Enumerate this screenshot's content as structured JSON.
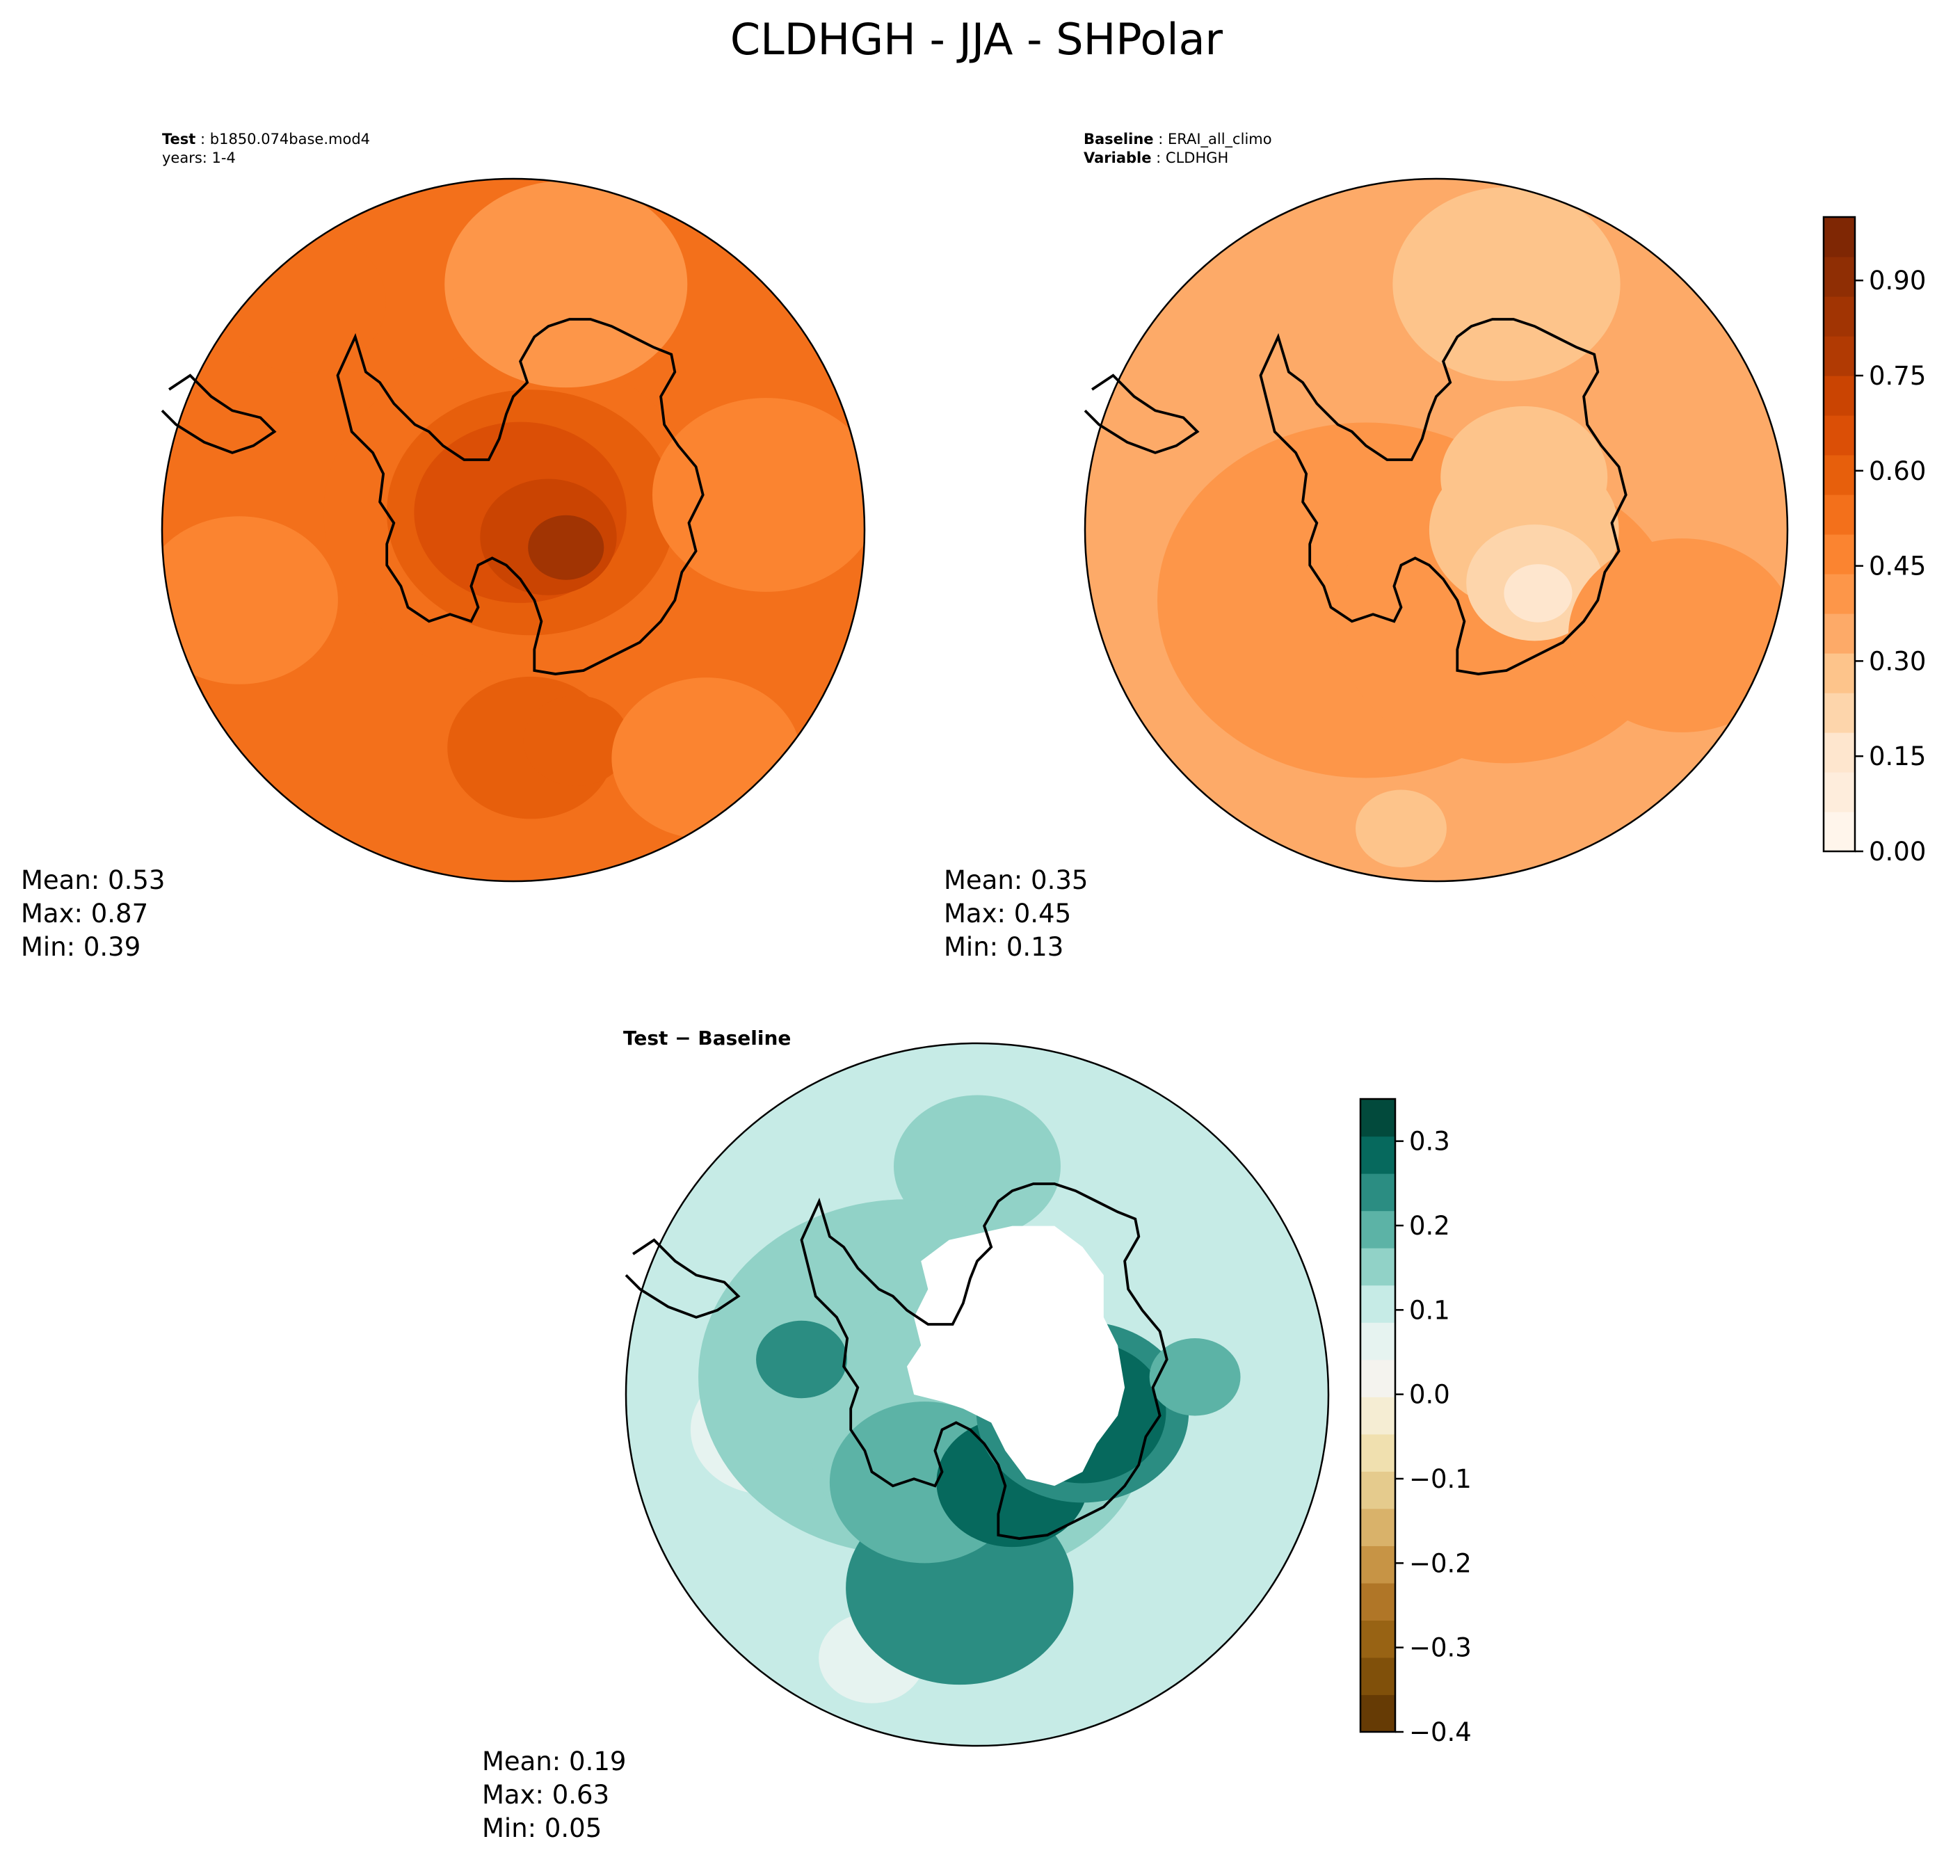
{
  "figure": {
    "title": "CLDHGH - JJA - SHPolar"
  },
  "chart_data": [
    {
      "type": "heatmap",
      "panel": "test",
      "projection": "south polar stereographic",
      "label_bold": "Test",
      "label_value": "b1850.074base.mod4",
      "label_line2": "years: 1-4",
      "stats": {
        "mean_label": "Mean:  0.53",
        "max_label": "Max:  0.87",
        "min_label": "Min:  0.39"
      },
      "levels": [
        0.35,
        0.4,
        0.45,
        0.5,
        0.55,
        0.6,
        0.65,
        0.7,
        0.75,
        0.8,
        0.85
      ],
      "background_value": 0.52,
      "blobs": [
        {
          "cx": 0.0,
          "cy": -0.05,
          "r": 0.5,
          "v": 0.55
        },
        {
          "cx": 0.05,
          "cy": -0.05,
          "r": 0.38,
          "v": 0.6
        },
        {
          "cx": 0.02,
          "cy": -0.05,
          "r": 0.28,
          "v": 0.66
        },
        {
          "cx": 0.1,
          "cy": 0.02,
          "r": 0.18,
          "v": 0.74
        },
        {
          "cx": 0.15,
          "cy": 0.05,
          "r": 0.1,
          "v": 0.82
        },
        {
          "cx": 0.05,
          "cy": 0.62,
          "r": 0.22,
          "v": 0.58
        },
        {
          "cx": 0.18,
          "cy": 0.6,
          "r": 0.14,
          "v": 0.62
        },
        {
          "cx": 0.15,
          "cy": -0.7,
          "r": 0.32,
          "v": 0.42
        },
        {
          "cx": 0.72,
          "cy": -0.1,
          "r": 0.3,
          "v": 0.46
        },
        {
          "cx": -0.78,
          "cy": 0.2,
          "r": 0.26,
          "v": 0.47
        },
        {
          "cx": 0.55,
          "cy": 0.65,
          "r": 0.25,
          "v": 0.47
        },
        {
          "cx": -0.6,
          "cy": -0.65,
          "r": 0.22,
          "v": 0.55
        }
      ]
    },
    {
      "type": "heatmap",
      "panel": "baseline",
      "projection": "south polar stereographic",
      "label_bold": "Baseline",
      "label_value": "ERAI_all_climo",
      "label2_bold": "Variable",
      "label2_value": "CLDHGH",
      "stats": {
        "mean_label": "Mean:  0.35",
        "max_label": "Max:  0.45",
        "min_label": "Min:  0.13"
      },
      "levels": [
        0.15,
        0.2,
        0.25,
        0.3,
        0.35,
        0.4,
        0.45
      ],
      "background_value": 0.36,
      "blobs": [
        {
          "cx": -0.2,
          "cy": 0.2,
          "r": 0.55,
          "v": 0.42
        },
        {
          "cx": 0.2,
          "cy": 0.25,
          "r": 0.45,
          "v": 0.4
        },
        {
          "cx": 0.2,
          "cy": -0.7,
          "r": 0.3,
          "v": 0.3
        },
        {
          "cx": 0.25,
          "cy": 0.0,
          "r": 0.25,
          "v": 0.25
        },
        {
          "cx": 0.25,
          "cy": -0.15,
          "r": 0.22,
          "v": 0.28
        },
        {
          "cx": 0.28,
          "cy": 0.15,
          "r": 0.18,
          "v": 0.2
        },
        {
          "cx": 0.29,
          "cy": 0.18,
          "r": 0.09,
          "v": 0.14
        },
        {
          "cx": -0.1,
          "cy": 0.85,
          "r": 0.12,
          "v": 0.3
        },
        {
          "cx": 0.7,
          "cy": 0.3,
          "r": 0.3,
          "v": 0.41
        }
      ],
      "colorbar": {
        "ticks": [
          "0.00",
          "0.15",
          "0.30",
          "0.45",
          "0.60",
          "0.75",
          "0.90"
        ],
        "tick_values": [
          0.0,
          0.15,
          0.3,
          0.45,
          0.6,
          0.75,
          0.9
        ],
        "range": [
          0.0,
          1.0
        ],
        "colors": [
          "#fff5eb",
          "#feeddc",
          "#fee6ce",
          "#fdd5ab",
          "#fdc48b",
          "#fdaa68",
          "#fd9649",
          "#fb8430",
          "#f3701b",
          "#e75f0c",
          "#db4f06",
          "#ca4402",
          "#b13a03",
          "#a13403",
          "#8f2e04",
          "#7f2704"
        ]
      }
    },
    {
      "type": "heatmap",
      "panel": "difference",
      "projection": "south polar stereographic",
      "label": "Test − Baseline",
      "stats": {
        "mean_label": "Mean:  0.19",
        "max_label": "Max:  0.63",
        "min_label": "Min:  0.05"
      },
      "levels": [
        0.05,
        0.1,
        0.15,
        0.2,
        0.25,
        0.3,
        0.35
      ],
      "background_value": 0.12,
      "blobs": [
        {
          "cx": 0.0,
          "cy": -0.65,
          "r": 0.22,
          "v": 0.17
        },
        {
          "cx": -0.6,
          "cy": 0.1,
          "r": 0.2,
          "v": 0.08
        },
        {
          "cx": -0.3,
          "cy": 0.75,
          "r": 0.14,
          "v": 0.08
        },
        {
          "cx": 0.72,
          "cy": -0.4,
          "r": 0.22,
          "v": 0.09
        },
        {
          "cx": -0.2,
          "cy": -0.05,
          "r": 0.55,
          "v": 0.17
        },
        {
          "cx": 0.0,
          "cy": 0.1,
          "r": 0.45,
          "v": 0.17
        },
        {
          "cx": -0.05,
          "cy": 0.55,
          "r": 0.3,
          "v": 0.22
        },
        {
          "cx": -0.15,
          "cy": 0.25,
          "r": 0.25,
          "v": 0.19
        },
        {
          "cx": 0.1,
          "cy": 0.25,
          "r": 0.2,
          "v": 0.3
        },
        {
          "cx": 0.3,
          "cy": 0.05,
          "r": 0.28,
          "v": 0.24
        },
        {
          "cx": 0.3,
          "cy": 0.05,
          "r": 0.22,
          "v": 0.28
        },
        {
          "cx": -0.5,
          "cy": -0.1,
          "r": 0.12,
          "v": 0.23
        },
        {
          "cx": 0.62,
          "cy": -0.05,
          "r": 0.12,
          "v": 0.2
        }
      ],
      "masked_region": "no data over central Antarctica",
      "colorbar": {
        "ticks": [
          "0.3",
          "0.2",
          "0.1",
          "0.0",
          "−0.1",
          "−0.2",
          "−0.3",
          "−0.4"
        ],
        "tick_values": [
          0.3,
          0.2,
          0.1,
          0.0,
          -0.1,
          -0.2,
          -0.3,
          -0.4
        ],
        "range": [
          -0.4,
          0.35
        ],
        "colors": [
          "#663b05",
          "#80500a",
          "#986314",
          "#b07627",
          "#c79445",
          "#d9b26a",
          "#e5cb8d",
          "#f0e0af",
          "#f5edd3",
          "#f4f3ee",
          "#e6f3f0",
          "#c6ebe6",
          "#91d2c7",
          "#5cb3a6",
          "#2b8d82",
          "#06695d",
          "#024a3c"
        ]
      }
    }
  ]
}
